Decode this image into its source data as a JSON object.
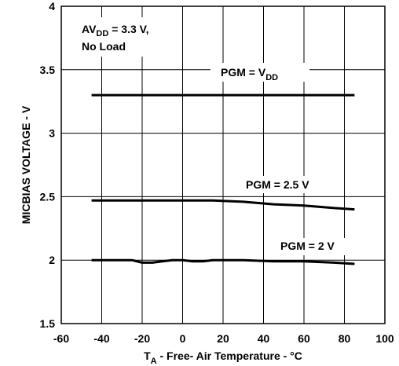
{
  "chart_data": {
    "type": "line",
    "xlabel": {
      "main": "T",
      "sub": "A",
      "rest": " - Free- Air Temperature - °C"
    },
    "ylabel": "MICBIAS VOLTAGE - V",
    "xlim": [
      -60,
      100
    ],
    "ylim": [
      1.5,
      4
    ],
    "xticks": [
      "-60",
      "-40",
      "-20",
      "0",
      "20",
      "40",
      "60",
      "80",
      "100"
    ],
    "yticks": [
      "1.5",
      "2",
      "2.5",
      "3",
      "3.5",
      "4"
    ],
    "grid": true,
    "annotations": [
      {
        "main": "AV",
        "sub": "DD",
        "rest": " = 3.3 V,",
        "line2": "No Load"
      }
    ],
    "series": [
      {
        "label": {
          "main": "PGM = V",
          "sub": "DD"
        },
        "x": [
          -45,
          -30,
          -15,
          0,
          15,
          30,
          45,
          60,
          75,
          85
        ],
        "y": [
          3.3,
          3.3,
          3.3,
          3.3,
          3.3,
          3.3,
          3.3,
          3.3,
          3.3,
          3.3
        ]
      },
      {
        "label": {
          "main": "PGM = 2.5 V",
          "sub": ""
        },
        "x": [
          -45,
          -30,
          -15,
          0,
          15,
          30,
          45,
          60,
          75,
          85
        ],
        "y": [
          2.47,
          2.47,
          2.47,
          2.47,
          2.47,
          2.46,
          2.44,
          2.43,
          2.41,
          2.4
        ]
      },
      {
        "label": {
          "main": "PGM = 2 V",
          "sub": ""
        },
        "x": [
          -45,
          -25,
          -20,
          -15,
          -10,
          -5,
          0,
          5,
          10,
          15,
          30,
          45,
          60,
          75,
          85
        ],
        "y": [
          2.0,
          2.0,
          1.98,
          1.98,
          1.99,
          2.0,
          2.0,
          1.99,
          1.99,
          2.0,
          2.0,
          1.99,
          1.99,
          1.98,
          1.97
        ]
      }
    ]
  }
}
